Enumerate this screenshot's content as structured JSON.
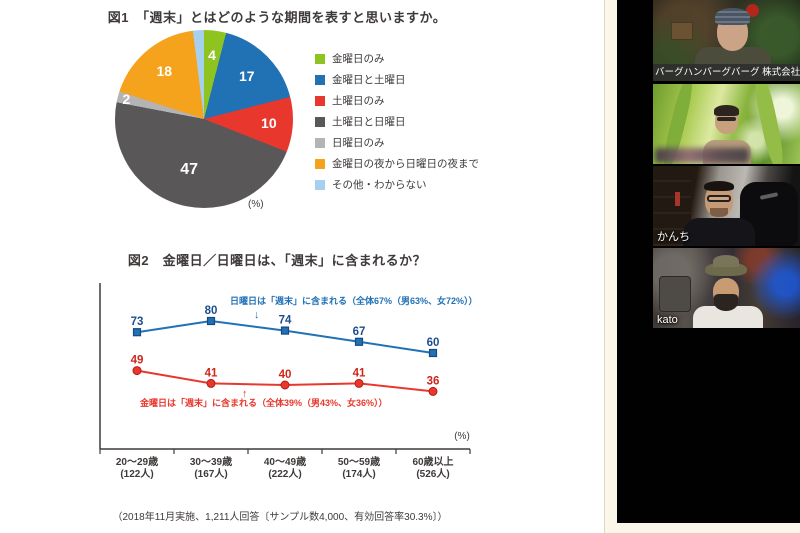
{
  "footer_note": "（2018年11月実施、1,211人回答〔サンプル数4,000、有効回答率30.3%〕）",
  "chart_data": [
    {
      "type": "pie",
      "title": "図1　「週末」とはどのような期間を表すと思いますか。",
      "unit": "(%)",
      "labels": [
        "金曜日のみ",
        "金曜日と土曜日",
        "土曜日のみ",
        "土曜日と日曜日",
        "日曜日のみ",
        "金曜日の夜から日曜日の夜まで",
        "その他・わからない"
      ],
      "values": [
        4,
        17,
        10,
        47,
        2,
        18,
        2
      ],
      "colors": [
        "#8fc31f",
        "#2171b5",
        "#e8382d",
        "#595757",
        "#b4b4b5",
        "#f5a21c",
        "#a5d1ee"
      ],
      "start": "top-clockwise",
      "label_radius": [
        0.72,
        0.68,
        0.73,
        0.6,
        0.9,
        0.7,
        0
      ],
      "legend_position": "right"
    },
    {
      "type": "line",
      "title": "図2　金曜日／日曜日は、「週末」に含まれるか？",
      "unit": "(%)",
      "categories": [
        "20～29歳",
        "30～39歳",
        "40～49歳",
        "50～59歳",
        "60歳以上"
      ],
      "category_counts": [
        "(122人)",
        "(167人)",
        "(222人)",
        "(174人)",
        "(526人)"
      ],
      "ylim": [
        0,
        100
      ],
      "grid": false,
      "series": [
        {
          "name": "日曜日は「週末」に含まれる",
          "values": [
            73,
            80,
            74,
            67,
            60
          ],
          "color": "#2171b5",
          "label_color": "#1c4e8e",
          "marker": "square",
          "annotation": "日曜日は「週末」に含まれる（全体67%（男63%、女72%））",
          "annotation_arrow": "↓"
        },
        {
          "name": "金曜日は「週末」に含まれる",
          "values": [
            49,
            41,
            40,
            41,
            36
          ],
          "color": "#e8382d",
          "label_color": "#cf261b",
          "marker": "circle",
          "annotation": "金曜日は「週末」に含まれる（全体39%（男43%、女36%））",
          "annotation_arrow": "↑"
        }
      ]
    }
  ],
  "video_panel": {
    "participants": [
      {
        "name": "バーグハンバーグバーグ 株式会社",
        "label_style": "bar"
      },
      {
        "name": "",
        "label_style": "blurred"
      },
      {
        "name": "かんち",
        "label_style": "plain"
      },
      {
        "name": "kato",
        "label_style": "plain"
      }
    ]
  }
}
